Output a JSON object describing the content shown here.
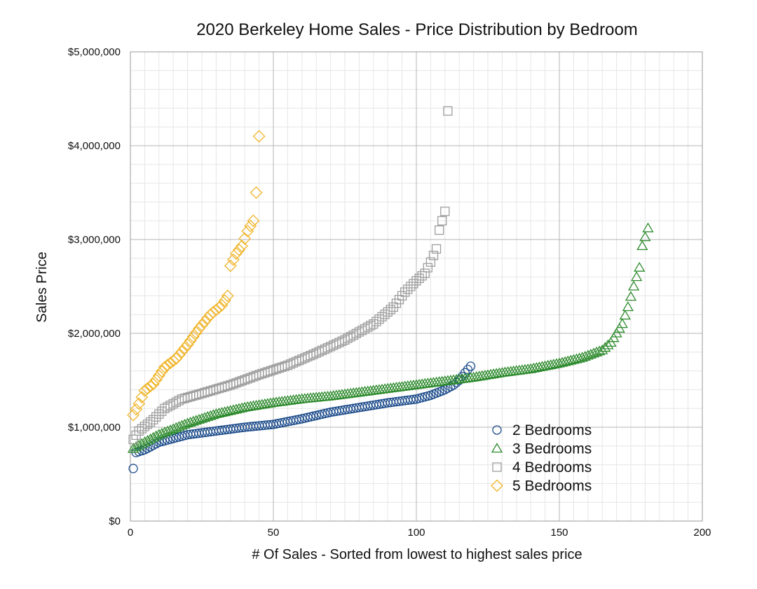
{
  "chart_data": {
    "type": "scatter",
    "title": "2020 Berkeley Home Sales - Price Distribution by Bedroom",
    "xlabel": "# Of Sales - Sorted from lowest to highest sales price",
    "ylabel": "Sales Price",
    "xlim": [
      0,
      200
    ],
    "ylim": [
      0,
      5000000
    ],
    "x_ticks": [
      0,
      50,
      100,
      150,
      200
    ],
    "x_tick_labels": [
      "0",
      "50",
      "100",
      "150",
      "200"
    ],
    "y_ticks": [
      0,
      1000000,
      2000000,
      3000000,
      4000000,
      5000000
    ],
    "y_tick_labels": [
      "$0",
      "$1,000,000",
      "$2,000,000",
      "$3,000,000",
      "$4,000,000",
      "$5,000,000"
    ],
    "grid": true,
    "legend_position": "bottom-right",
    "series": [
      {
        "name": "2 Bedrooms",
        "marker": "circle",
        "color": "#1f4e8c",
        "count": 119,
        "curve": [
          [
            1,
            560000
          ],
          [
            2,
            730000
          ],
          [
            5,
            760000
          ],
          [
            10,
            840000
          ],
          [
            15,
            880000
          ],
          [
            20,
            920000
          ],
          [
            30,
            960000
          ],
          [
            40,
            1000000
          ],
          [
            50,
            1030000
          ],
          [
            60,
            1090000
          ],
          [
            70,
            1160000
          ],
          [
            80,
            1210000
          ],
          [
            90,
            1260000
          ],
          [
            100,
            1300000
          ],
          [
            105,
            1340000
          ],
          [
            110,
            1400000
          ],
          [
            113,
            1450000
          ],
          [
            115,
            1500000
          ],
          [
            117,
            1580000
          ],
          [
            119,
            1650000
          ]
        ]
      },
      {
        "name": "3 Bedrooms",
        "marker": "triangle",
        "color": "#2e8b2e",
        "count": 181,
        "curve": [
          [
            1,
            770000
          ],
          [
            5,
            840000
          ],
          [
            10,
            920000
          ],
          [
            20,
            1040000
          ],
          [
            30,
            1140000
          ],
          [
            40,
            1210000
          ],
          [
            50,
            1260000
          ],
          [
            60,
            1300000
          ],
          [
            70,
            1330000
          ],
          [
            80,
            1370000
          ],
          [
            90,
            1410000
          ],
          [
            100,
            1450000
          ],
          [
            110,
            1490000
          ],
          [
            120,
            1530000
          ],
          [
            130,
            1580000
          ],
          [
            140,
            1620000
          ],
          [
            150,
            1680000
          ],
          [
            158,
            1740000
          ],
          [
            165,
            1820000
          ],
          [
            168,
            1900000
          ],
          [
            170,
            2000000
          ],
          [
            172,
            2100000
          ],
          [
            174,
            2280000
          ],
          [
            176,
            2500000
          ],
          [
            178,
            2700000
          ],
          [
            179,
            2930000
          ],
          [
            181,
            3120000
          ]
        ]
      },
      {
        "name": "4 Bedrooms",
        "marker": "square",
        "color": "#9e9e9e",
        "count": 111,
        "curve": [
          [
            1,
            870000
          ],
          [
            3,
            960000
          ],
          [
            8,
            1080000
          ],
          [
            12,
            1200000
          ],
          [
            18,
            1300000
          ],
          [
            25,
            1360000
          ],
          [
            35,
            1450000
          ],
          [
            45,
            1560000
          ],
          [
            55,
            1660000
          ],
          [
            65,
            1790000
          ],
          [
            75,
            1930000
          ],
          [
            85,
            2100000
          ],
          [
            92,
            2280000
          ],
          [
            96,
            2440000
          ],
          [
            100,
            2560000
          ],
          [
            103,
            2640000
          ],
          [
            105,
            2760000
          ],
          [
            107,
            2900000
          ],
          [
            108,
            3100000
          ],
          [
            109,
            3200000
          ],
          [
            110,
            3300000
          ],
          [
            111,
            4370000
          ]
        ]
      },
      {
        "name": "5 Bedrooms",
        "marker": "diamond",
        "color": "#f0b428",
        "count": 45,
        "curve": [
          [
            1,
            1130000
          ],
          [
            3,
            1250000
          ],
          [
            5,
            1390000
          ],
          [
            8,
            1460000
          ],
          [
            12,
            1640000
          ],
          [
            16,
            1730000
          ],
          [
            20,
            1880000
          ],
          [
            24,
            2050000
          ],
          [
            28,
            2200000
          ],
          [
            32,
            2300000
          ],
          [
            34,
            2400000
          ],
          [
            35,
            2720000
          ],
          [
            37,
            2850000
          ],
          [
            39,
            2930000
          ],
          [
            41,
            3090000
          ],
          [
            43,
            3200000
          ],
          [
            44,
            3500000
          ],
          [
            45,
            4100000
          ]
        ]
      }
    ]
  }
}
